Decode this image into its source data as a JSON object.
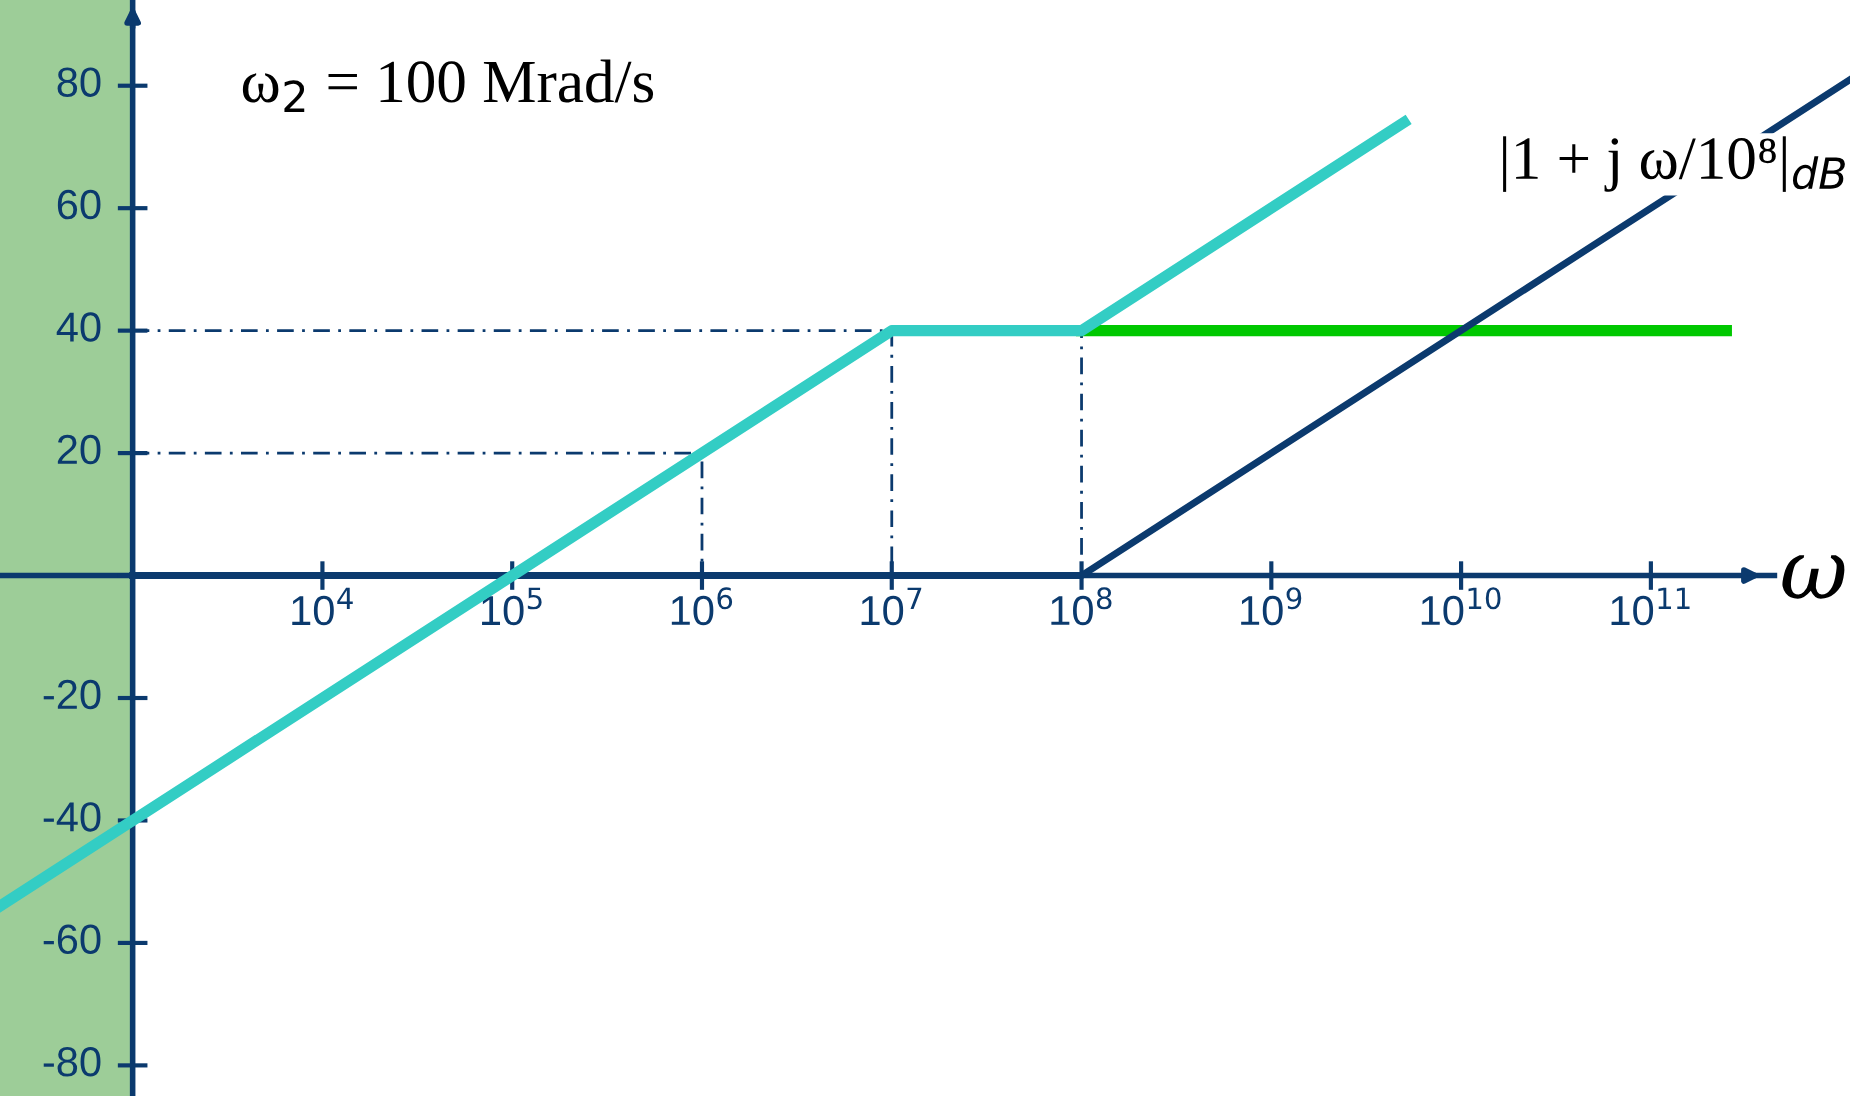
{
  "chart_data": {
    "type": "line",
    "xlabel": "ω",
    "log": "x",
    "annotations": [
      "ω$_{2}$ = 100 Mrad/s",
      "|1 + j ω/10⁸|$_{dB}$"
    ],
    "xlim": [
      200,
      1120000000000.0
    ],
    "ylim": [
      -85,
      94
    ],
    "xticks": [
      {
        "value": 10000,
        "label": "10$^{4}$"
      },
      {
        "value": 100000,
        "label": "10$^{5}$"
      },
      {
        "value": 1000000,
        "label": "10$^{6}$"
      },
      {
        "value": 10000000,
        "label": "10$^{7}$"
      },
      {
        "value": 100000000,
        "label": "10$^{8}$"
      },
      {
        "value": 1000000000,
        "label": "10$^{9}$"
      },
      {
        "value": 10000000000,
        "label": "10$^{10}$"
      },
      {
        "value": 100000000000,
        "label": "10$^{11}$"
      }
    ],
    "yticks": [
      -80,
      -60,
      -40,
      -20,
      {
        "value": 0,
        "label": null
      },
      20,
      40,
      60,
      80
    ],
    "bands": [
      {
        "axis": "x",
        "from": 200,
        "to": 1000,
        "color": "#9dcd98"
      }
    ],
    "ref_lines": [
      {
        "axis": "y",
        "value": 0,
        "color": "#0b3a6e"
      },
      {
        "axis": "x",
        "value": 1000,
        "color": "#0b3a6e"
      }
    ],
    "grid": false,
    "legend": false,
    "marker": "none",
    "series": [
      {
        "color": "#0b3a6e",
        "x": [
          1000,
          1000000,
          1000000
        ],
        "values": [
          20,
          20,
          0
        ],
        "line_style": "dashed"
      },
      {
        "color": "#0b3a6e",
        "x": [
          1000,
          10000000,
          10000000
        ],
        "values": [
          40,
          40,
          0
        ],
        "line_style": "dashed"
      },
      {
        "color": "#0b3a6e",
        "x": [
          10000000,
          100000000,
          100000000
        ],
        "values": [
          40,
          40,
          0
        ],
        "line_style": "dashed"
      },
      {
        "color": "#00c800",
        "x": [
          100000000,
          250000000000
        ],
        "values": [
          40,
          40
        ],
        "line_style": "solid"
      },
      {
        "color": "#0b3a6e",
        "x": [
          1000,
          100000000,
          1120000000000.0
        ],
        "values": [
          0,
          0,
          81
        ],
        "line_style": "solid"
      },
      {
        "color": "#33cdc4",
        "x": [
          200,
          10000000,
          100000000,
          5000000000
        ],
        "values": [
          -54,
          40,
          40,
          74
        ],
        "line_style": "solid"
      }
    ]
  }
}
